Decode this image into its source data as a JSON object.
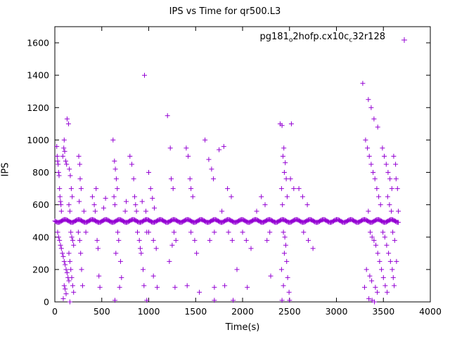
{
  "chart_data": {
    "type": "scatter",
    "title": "IPS vs Time for qr500.L3",
    "xlabel": "Time(s)",
    "ylabel": "IPS",
    "xlim": [
      0,
      4000
    ],
    "ylim": [
      0,
      1700
    ],
    "xticks": [
      0,
      500,
      1000,
      1500,
      2000,
      2500,
      3000,
      3500,
      4000
    ],
    "yticks": [
      0,
      200,
      400,
      600,
      800,
      1000,
      1200,
      1400,
      1600
    ],
    "grid": false,
    "legend_position": "top-right",
    "marker": "plus",
    "marker_color": "#9400d3",
    "legend_parts": [
      {
        "t": "pg181"
      },
      {
        "t": "o",
        "sub": true
      },
      {
        "t": "2hofp.cx10c"
      },
      {
        "t": "c",
        "sub": true
      },
      {
        "t": "32r128"
      }
    ],
    "band": {
      "y": 500,
      "x_min": 0,
      "x_max": 3660,
      "step": 10,
      "jitter": 2
    },
    "points": [
      [
        20,
        960
      ],
      [
        25,
        900
      ],
      [
        30,
        870
      ],
      [
        35,
        850
      ],
      [
        40,
        800
      ],
      [
        45,
        780
      ],
      [
        50,
        700
      ],
      [
        55,
        650
      ],
      [
        60,
        620
      ],
      [
        65,
        600
      ],
      [
        70,
        560
      ],
      [
        30,
        430
      ],
      [
        40,
        400
      ],
      [
        50,
        380
      ],
      [
        60,
        350
      ],
      [
        70,
        330
      ],
      [
        80,
        300
      ],
      [
        90,
        280
      ],
      [
        100,
        250
      ],
      [
        110,
        230
      ],
      [
        120,
        200
      ],
      [
        130,
        180
      ],
      [
        140,
        150
      ],
      [
        150,
        130
      ],
      [
        100,
        100
      ],
      [
        110,
        80
      ],
      [
        120,
        50
      ],
      [
        90,
        20
      ],
      [
        130,
        1130
      ],
      [
        145,
        1100
      ],
      [
        100,
        1000
      ],
      [
        95,
        950
      ],
      [
        105,
        930
      ],
      [
        85,
        900
      ],
      [
        115,
        870
      ],
      [
        125,
        850
      ],
      [
        155,
        820
      ],
      [
        165,
        780
      ],
      [
        175,
        700
      ],
      [
        185,
        650
      ],
      [
        150,
        600
      ],
      [
        160,
        560
      ],
      [
        170,
        430
      ],
      [
        180,
        400
      ],
      [
        190,
        380
      ],
      [
        200,
        350
      ],
      [
        150,
        300
      ],
      [
        160,
        250
      ],
      [
        170,
        200
      ],
      [
        180,
        150
      ],
      [
        190,
        100
      ],
      [
        200,
        60
      ],
      [
        160,
        0
      ],
      [
        255,
        900
      ],
      [
        265,
        850
      ],
      [
        270,
        760
      ],
      [
        280,
        700
      ],
      [
        260,
        620
      ],
      [
        250,
        430
      ],
      [
        265,
        380
      ],
      [
        275,
        300
      ],
      [
        285,
        200
      ],
      [
        295,
        100
      ],
      [
        310,
        560
      ],
      [
        330,
        430
      ],
      [
        400,
        650
      ],
      [
        420,
        600
      ],
      [
        430,
        560
      ],
      [
        440,
        700
      ],
      [
        450,
        380
      ],
      [
        460,
        330
      ],
      [
        470,
        160
      ],
      [
        480,
        90
      ],
      [
        520,
        580
      ],
      [
        540,
        640
      ],
      [
        620,
        1000
      ],
      [
        635,
        870
      ],
      [
        645,
        820
      ],
      [
        655,
        760
      ],
      [
        665,
        700
      ],
      [
        630,
        650
      ],
      [
        640,
        600
      ],
      [
        670,
        430
      ],
      [
        680,
        380
      ],
      [
        650,
        300
      ],
      [
        700,
        250
      ],
      [
        710,
        150
      ],
      [
        690,
        90
      ],
      [
        750,
        560
      ],
      [
        760,
        620
      ],
      [
        800,
        900
      ],
      [
        820,
        850
      ],
      [
        840,
        760
      ],
      [
        850,
        650
      ],
      [
        860,
        600
      ],
      [
        870,
        560
      ],
      [
        880,
        430
      ],
      [
        900,
        380
      ],
      [
        910,
        330
      ],
      [
        920,
        300
      ],
      [
        930,
        620
      ],
      [
        940,
        200
      ],
      [
        950,
        100
      ],
      [
        955,
        1400
      ],
      [
        970,
        560
      ],
      [
        980,
        430
      ],
      [
        1000,
        800
      ],
      [
        1020,
        700
      ],
      [
        1040,
        640
      ],
      [
        1060,
        580
      ],
      [
        1000,
        430
      ],
      [
        1050,
        380
      ],
      [
        1080,
        330
      ],
      [
        1050,
        160
      ],
      [
        1090,
        90
      ],
      [
        1200,
        1150
      ],
      [
        1230,
        950
      ],
      [
        1240,
        760
      ],
      [
        1260,
        700
      ],
      [
        1270,
        430
      ],
      [
        1290,
        380
      ],
      [
        1250,
        350
      ],
      [
        1220,
        250
      ],
      [
        1280,
        90
      ],
      [
        1400,
        950
      ],
      [
        1420,
        900
      ],
      [
        1440,
        760
      ],
      [
        1450,
        700
      ],
      [
        1470,
        650
      ],
      [
        1450,
        430
      ],
      [
        1490,
        380
      ],
      [
        1510,
        300
      ],
      [
        1410,
        100
      ],
      [
        1540,
        60
      ],
      [
        1600,
        1000
      ],
      [
        1640,
        880
      ],
      [
        1670,
        820
      ],
      [
        1690,
        760
      ],
      [
        1700,
        430
      ],
      [
        1650,
        380
      ],
      [
        1700,
        90
      ],
      [
        1750,
        940
      ],
      [
        1780,
        560
      ],
      [
        1800,
        960
      ],
      [
        1840,
        700
      ],
      [
        1880,
        650
      ],
      [
        1850,
        430
      ],
      [
        1890,
        380
      ],
      [
        1940,
        200
      ],
      [
        1810,
        100
      ],
      [
        1900,
        10
      ],
      [
        2000,
        430
      ],
      [
        2040,
        380
      ],
      [
        2090,
        330
      ],
      [
        2050,
        90
      ],
      [
        2150,
        560
      ],
      [
        2200,
        650
      ],
      [
        2240,
        600
      ],
      [
        2290,
        430
      ],
      [
        2260,
        380
      ],
      [
        2300,
        160
      ],
      [
        2400,
        1100
      ],
      [
        2420,
        1090
      ],
      [
        2440,
        950
      ],
      [
        2430,
        900
      ],
      [
        2455,
        860
      ],
      [
        2445,
        800
      ],
      [
        2465,
        760
      ],
      [
        2415,
        700
      ],
      [
        2475,
        650
      ],
      [
        2425,
        600
      ],
      [
        2435,
        430
      ],
      [
        2450,
        400
      ],
      [
        2460,
        350
      ],
      [
        2445,
        300
      ],
      [
        2470,
        250
      ],
      [
        2415,
        200
      ],
      [
        2480,
        150
      ],
      [
        2435,
        100
      ],
      [
        2495,
        60
      ],
      [
        2510,
        760
      ],
      [
        2545,
        700
      ],
      [
        2520,
        1100
      ],
      [
        2500,
        10
      ],
      [
        2600,
        700
      ],
      [
        2640,
        650
      ],
      [
        2690,
        600
      ],
      [
        2650,
        430
      ],
      [
        2700,
        380
      ],
      [
        2750,
        330
      ],
      [
        3280,
        1350
      ],
      [
        3340,
        1250
      ],
      [
        3370,
        1200
      ],
      [
        3310,
        1000
      ],
      [
        3330,
        950
      ],
      [
        3350,
        900
      ],
      [
        3370,
        850
      ],
      [
        3390,
        800
      ],
      [
        3410,
        760
      ],
      [
        3430,
        700
      ],
      [
        3450,
        650
      ],
      [
        3470,
        600
      ],
      [
        3340,
        560
      ],
      [
        3360,
        430
      ],
      [
        3380,
        400
      ],
      [
        3400,
        380
      ],
      [
        3420,
        350
      ],
      [
        3440,
        300
      ],
      [
        3460,
        250
      ],
      [
        3480,
        200
      ],
      [
        3500,
        150
      ],
      [
        3520,
        100
      ],
      [
        3540,
        60
      ],
      [
        3400,
        1130
      ],
      [
        3440,
        1080
      ],
      [
        3490,
        950
      ],
      [
        3510,
        900
      ],
      [
        3530,
        850
      ],
      [
        3550,
        800
      ],
      [
        3570,
        760
      ],
      [
        3590,
        700
      ],
      [
        3545,
        650
      ],
      [
        3565,
        600
      ],
      [
        3585,
        560
      ],
      [
        3495,
        430
      ],
      [
        3515,
        400
      ],
      [
        3535,
        350
      ],
      [
        3555,
        300
      ],
      [
        3575,
        250
      ],
      [
        3595,
        200
      ],
      [
        3605,
        150
      ],
      [
        3615,
        100
      ],
      [
        3345,
        20
      ],
      [
        3405,
        0
      ],
      [
        3600,
        430
      ],
      [
        3620,
        380
      ],
      [
        3635,
        760
      ],
      [
        3650,
        700
      ],
      [
        3660,
        560
      ],
      [
        3640,
        250
      ],
      [
        3610,
        900
      ],
      [
        3630,
        850
      ],
      [
        3355,
        160
      ],
      [
        3375,
        130
      ],
      [
        3415,
        90
      ],
      [
        3435,
        60
      ],
      [
        3300,
        90
      ],
      [
        3320,
        200
      ],
      [
        640,
        10
      ],
      [
        980,
        10
      ],
      [
        1700,
        10
      ],
      [
        2420,
        10
      ],
      [
        3380,
        10
      ]
    ]
  }
}
